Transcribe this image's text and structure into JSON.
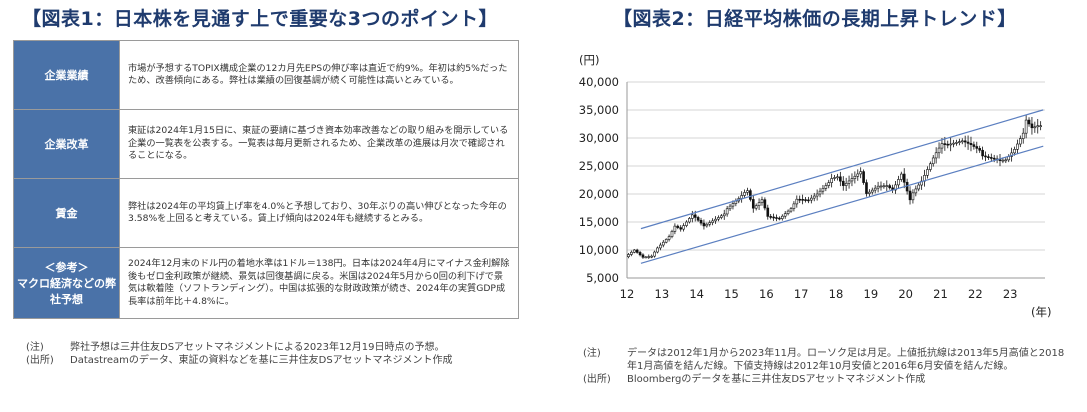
{
  "left": {
    "title": "【図表1：日本株を見通す上で重要な3つのポイント】",
    "rows": [
      {
        "category": "企業業績",
        "sub": "",
        "text": "市場が予想するTOPIX構成企業の12カ月先EPSの伸び率は直近で約9%。年初は約5%だったため、改善傾向にある。弊社は業績の回復基調が続く可能性は高いとみている。"
      },
      {
        "category": "企業改革",
        "sub": "",
        "text": "東証は2024年1月15日に、東証の要請に基づき資本効率改善などの取り組みを開示している企業の一覧表を公表する。一覧表は毎月更新されるため、企業改革の進展は月次で確認されることになる。"
      },
      {
        "category": "賃金",
        "sub": "",
        "text": "弊社は2024年の平均賃上げ率を4.0%と予想しており、30年ぶりの高い伸びとなった今年の3.58%を上回ると考えている。賃上げ傾向は2024年も継続するとみる。"
      },
      {
        "category": "＜参考＞",
        "sub": "マクロ経済などの弊社予想",
        "text": "2024年12月末のドル円の着地水準は1ドル＝138円。日本は2024年4月にマイナス金利解除後もゼロ金利政策が継続、景気は回復基調に戻る。米国は2024年5月から0回の利下げで景気は軟着陸（ソフトランディング）。中国は拡張的な財政政策が続き、2024年の実質GDP成長率は前年比＋4.8%に。"
      }
    ],
    "notes": [
      {
        "label": "(注)",
        "text": "弊社予想は三井住友DSアセットマネジメントによる2023年12月19日時点の予想。"
      },
      {
        "label": "(出所)",
        "text": "Datastreamのデータ、東証の資料などを基に三井住友DSアセットマネジメント作成"
      }
    ]
  },
  "right": {
    "title": "【図表2：日経平均株価の長期上昇トレンド】",
    "notes": [
      {
        "label": "(注)",
        "text": "データは2012年1月から2023年11月。ローソク足は月足。上値抵抗線は2013年5月高値と2018年1月高値を結んだ線。下値支持線は2012年10月安値と2016年6月安値を結んだ線。"
      },
      {
        "label": "(出所)",
        "text": "Bloombergのデータを基に三井住友DSアセットマネジメント作成"
      }
    ]
  },
  "chart_data": {
    "type": "candlestick",
    "title": "【図表2：日経平均株価の長期上昇トレンド】",
    "y_unit": "(円)",
    "x_unit": "(年)",
    "ylim": [
      5000,
      40000
    ],
    "yticks": [
      "5,000",
      "10,000",
      "15,000",
      "20,000",
      "25,000",
      "30,000",
      "35,000",
      "40,000"
    ],
    "xticks": [
      "12",
      "13",
      "14",
      "15",
      "16",
      "17",
      "18",
      "19",
      "20",
      "21",
      "22",
      "23"
    ],
    "xlim": [
      2012.0,
      2024.0
    ],
    "grid": true,
    "close_series": [
      [
        2012.0,
        8800
      ],
      [
        2012.25,
        10000
      ],
      [
        2012.5,
        8700
      ],
      [
        2012.75,
        8900
      ],
      [
        2012.92,
        10400
      ],
      [
        2013.25,
        12400
      ],
      [
        2013.42,
        14300
      ],
      [
        2013.58,
        13700
      ],
      [
        2013.92,
        16300
      ],
      [
        2014.25,
        14300
      ],
      [
        2014.5,
        15200
      ],
      [
        2014.83,
        16400
      ],
      [
        2014.92,
        17400
      ],
      [
        2015.25,
        19200
      ],
      [
        2015.42,
        20300
      ],
      [
        2015.5,
        20600
      ],
      [
        2015.67,
        17400
      ],
      [
        2015.92,
        19000
      ],
      [
        2016.08,
        16000
      ],
      [
        2016.42,
        15600
      ],
      [
        2016.75,
        17400
      ],
      [
        2016.92,
        19100
      ],
      [
        2017.25,
        18900
      ],
      [
        2017.5,
        20000
      ],
      [
        2017.83,
        22000
      ],
      [
        2017.92,
        22800
      ],
      [
        2018.08,
        23100
      ],
      [
        2018.25,
        21500
      ],
      [
        2018.75,
        24000
      ],
      [
        2018.92,
        20000
      ],
      [
        2019.25,
        21400
      ],
      [
        2019.5,
        21500
      ],
      [
        2019.67,
        20700
      ],
      [
        2019.92,
        23600
      ],
      [
        2020.17,
        18900
      ],
      [
        2020.25,
        20200
      ],
      [
        2020.5,
        22300
      ],
      [
        2020.83,
        26400
      ],
      [
        2020.92,
        27400
      ],
      [
        2021.08,
        29000
      ],
      [
        2021.25,
        28800
      ],
      [
        2021.67,
        29500
      ],
      [
        2021.92,
        28800
      ],
      [
        2022.17,
        27800
      ],
      [
        2022.25,
        26800
      ],
      [
        2022.5,
        26400
      ],
      [
        2022.75,
        26000
      ],
      [
        2022.92,
        26100
      ],
      [
        2023.17,
        28000
      ],
      [
        2023.42,
        30900
      ],
      [
        2023.5,
        33200
      ],
      [
        2023.67,
        31800
      ],
      [
        2023.83,
        32200
      ]
    ],
    "lines": [
      {
        "name": "上値抵抗線",
        "from": [
          2013.37,
          15600
        ],
        "to": [
          2018.0,
          24100
        ]
      },
      {
        "name": "下値支持線",
        "from": [
          2012.83,
          8400
        ],
        "to": [
          2016.42,
          14900
        ]
      }
    ]
  }
}
